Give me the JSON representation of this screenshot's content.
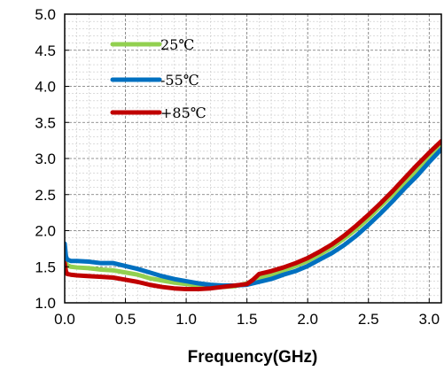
{
  "chart_data": {
    "type": "line",
    "title": "",
    "xlabel": "Frequency(GHz)",
    "ylabel": "",
    "xlim": [
      0,
      3.1
    ],
    "ylim": [
      1.0,
      5.0
    ],
    "xticks": [
      "0.0",
      "0.5",
      "1.0",
      "1.5",
      "2.0",
      "2.5",
      "3.0"
    ],
    "yticks": [
      "1.0",
      "1.5",
      "2.0",
      "2.5",
      "3.0",
      "3.5",
      "4.0",
      "4.5",
      "5.0"
    ],
    "grid": true,
    "legend_position": "top-left",
    "series": [
      {
        "name": "25℃",
        "color": "#92d050",
        "x": [
          0.0,
          0.01,
          0.02,
          0.05,
          0.1,
          0.2,
          0.3,
          0.4,
          0.5,
          0.6,
          0.7,
          0.8,
          0.9,
          1.0,
          1.1,
          1.2,
          1.3,
          1.4,
          1.5,
          1.6,
          1.7,
          1.8,
          1.9,
          2.0,
          2.1,
          2.2,
          2.3,
          2.4,
          2.5,
          2.6,
          2.7,
          2.8,
          2.9,
          3.0,
          3.1
        ],
        "y": [
          1.6,
          1.56,
          1.52,
          1.5,
          1.49,
          1.48,
          1.46,
          1.45,
          1.42,
          1.39,
          1.34,
          1.31,
          1.28,
          1.26,
          1.24,
          1.22,
          1.22,
          1.23,
          1.27,
          1.34,
          1.39,
          1.45,
          1.51,
          1.58,
          1.67,
          1.77,
          1.89,
          2.02,
          2.17,
          2.34,
          2.5,
          2.67,
          2.84,
          3.0,
          3.18
        ]
      },
      {
        "name": "-55℃",
        "color": "#0070c0",
        "x": [
          0.0,
          0.01,
          0.02,
          0.05,
          0.1,
          0.2,
          0.3,
          0.4,
          0.5,
          0.6,
          0.7,
          0.8,
          0.9,
          1.0,
          1.1,
          1.2,
          1.3,
          1.4,
          1.5,
          1.6,
          1.7,
          1.8,
          1.9,
          2.0,
          2.1,
          2.2,
          2.3,
          2.4,
          2.5,
          2.6,
          2.7,
          2.8,
          2.9,
          3.0,
          3.1
        ],
        "y": [
          1.82,
          1.65,
          1.6,
          1.58,
          1.58,
          1.57,
          1.55,
          1.55,
          1.51,
          1.47,
          1.42,
          1.37,
          1.33,
          1.3,
          1.27,
          1.25,
          1.24,
          1.24,
          1.25,
          1.29,
          1.33,
          1.39,
          1.44,
          1.51,
          1.6,
          1.69,
          1.8,
          1.93,
          2.08,
          2.24,
          2.41,
          2.59,
          2.76,
          2.95,
          3.13
        ]
      },
      {
        "name": "+85℃",
        "color": "#c00000",
        "x": [
          0.0,
          0.01,
          0.02,
          0.05,
          0.1,
          0.2,
          0.3,
          0.4,
          0.5,
          0.6,
          0.7,
          0.8,
          0.9,
          1.0,
          1.1,
          1.2,
          1.3,
          1.4,
          1.5,
          1.55,
          1.6,
          1.7,
          1.8,
          1.9,
          2.0,
          2.1,
          2.2,
          2.3,
          2.4,
          2.5,
          2.6,
          2.7,
          2.8,
          2.9,
          3.0,
          3.1
        ],
        "y": [
          1.55,
          1.44,
          1.4,
          1.39,
          1.38,
          1.37,
          1.36,
          1.35,
          1.32,
          1.29,
          1.25,
          1.22,
          1.2,
          1.19,
          1.19,
          1.2,
          1.22,
          1.24,
          1.26,
          1.32,
          1.4,
          1.44,
          1.49,
          1.55,
          1.62,
          1.71,
          1.81,
          1.93,
          2.07,
          2.22,
          2.38,
          2.55,
          2.73,
          2.91,
          3.08,
          3.24
        ]
      }
    ]
  }
}
